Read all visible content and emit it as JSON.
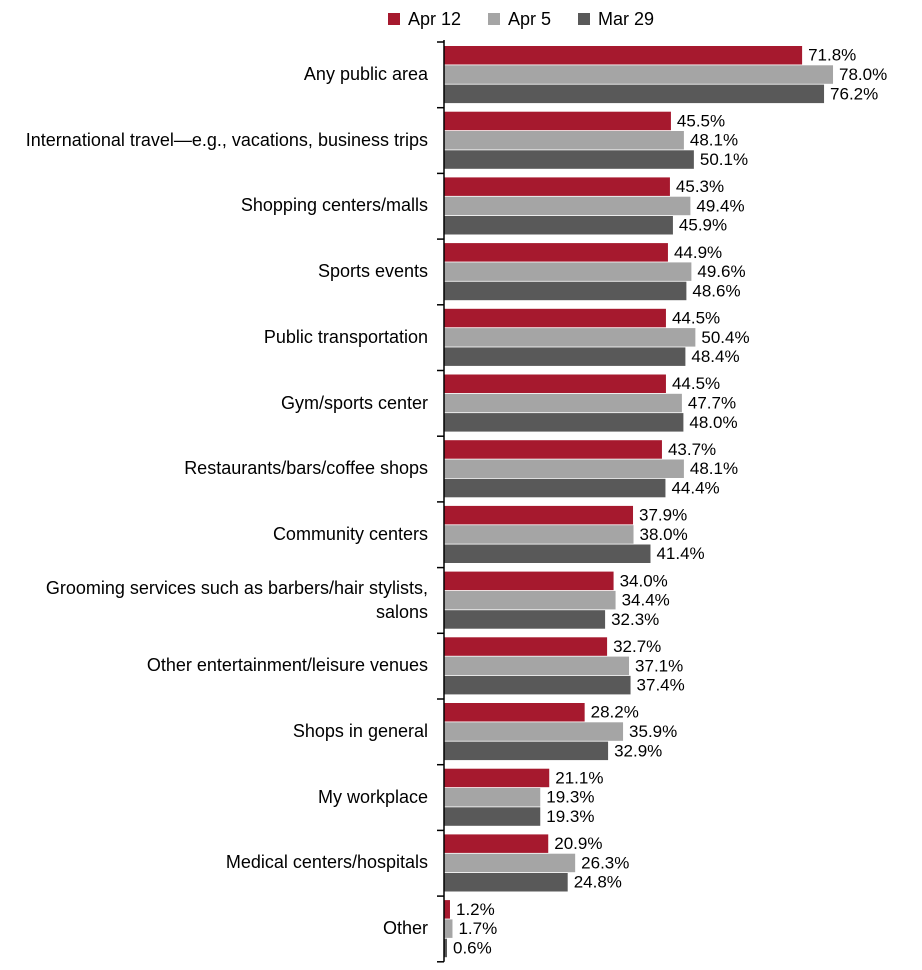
{
  "chart_data": {
    "type": "hbar",
    "categories": [
      "Any public area",
      "International travel—e.g., vacations, business trips",
      "Shopping centers/malls",
      "Sports events",
      "Public transportation",
      "Gym/sports center",
      "Restaurants/bars/coffee shops",
      "Community centers",
      "Grooming services such as barbers/hair stylists, salons",
      "Other entertainment/leisure venues",
      "Shops in general",
      "My workplace",
      "Medical centers/hospitals",
      "Other"
    ],
    "series": [
      {
        "name": "Apr 12",
        "color": "#a6192e",
        "values": [
          71.8,
          45.5,
          45.3,
          44.9,
          44.5,
          44.5,
          43.7,
          37.9,
          34.0,
          32.7,
          28.2,
          21.1,
          20.9,
          1.2
        ],
        "value_labels": [
          "71.8%",
          "45.5%",
          "45.3%",
          "44.9%",
          "44.5%",
          "44.5%",
          "43.7%",
          "37.9%",
          "34.0%",
          "32.7%",
          "28.2%",
          "21.1%",
          "20.9%",
          "1.2%"
        ]
      },
      {
        "name": "Apr 5",
        "color": "#a5a5a5",
        "values": [
          78.0,
          48.1,
          49.4,
          49.6,
          50.4,
          47.7,
          48.1,
          38.0,
          34.4,
          37.1,
          35.9,
          19.3,
          26.3,
          1.7
        ],
        "value_labels": [
          "78.0%",
          "48.1%",
          "49.4%",
          "49.6%",
          "50.4%",
          "47.7%",
          "48.1%",
          "38.0%",
          "34.4%",
          "37.1%",
          "35.9%",
          "19.3%",
          "26.3%",
          "1.7%"
        ]
      },
      {
        "name": "Mar 29",
        "color": "#595959",
        "values": [
          76.2,
          50.1,
          45.9,
          48.6,
          48.4,
          48.0,
          44.4,
          41.4,
          32.3,
          37.4,
          32.9,
          19.3,
          24.8,
          0.6
        ],
        "value_labels": [
          "76.2%",
          "50.1%",
          "45.9%",
          "48.6%",
          "48.4%",
          "48.0%",
          "44.4%",
          "41.4%",
          "32.3%",
          "37.4%",
          "32.9%",
          "19.3%",
          "24.8%",
          "0.6%"
        ]
      }
    ],
    "xlim": [
      0,
      80
    ],
    "legend": "top"
  }
}
